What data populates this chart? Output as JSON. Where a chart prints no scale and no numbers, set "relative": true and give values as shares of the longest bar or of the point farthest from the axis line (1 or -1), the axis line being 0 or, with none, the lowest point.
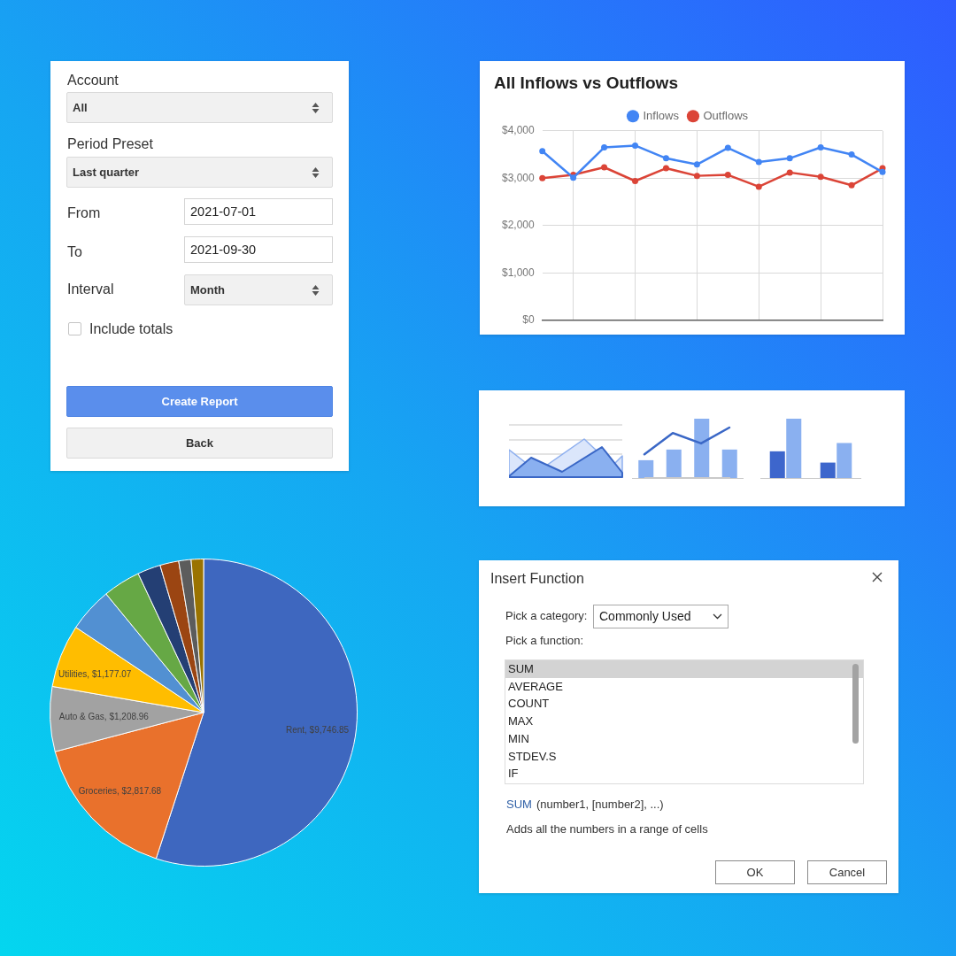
{
  "chart_data": [
    {
      "type": "other",
      "annotations": [
        "Account",
        "All",
        "Period Preset",
        "Last quarter",
        "From",
        "2021-07-01",
        "To",
        "2021-09-30",
        "Interval",
        "Month",
        "Include totals",
        "Create Report",
        "Back"
      ]
    },
    {
      "type": "line",
      "title": "All Inflows vs Outflows",
      "categories": [
        null,
        null,
        null,
        null,
        null,
        null,
        null,
        null,
        null,
        null,
        null,
        null
      ],
      "series": [
        {
          "name": "Inflows",
          "color": "#4285f4",
          "values": [
            3570,
            3010,
            3650,
            3690,
            3420,
            3290,
            3640,
            3340,
            3420,
            3650,
            3500,
            3130
          ]
        },
        {
          "name": "Outflows",
          "color": "#db4437",
          "values": [
            3000,
            3070,
            3230,
            2940,
            3210,
            3050,
            3070,
            2820,
            3120,
            3030,
            2850,
            3210
          ]
        }
      ],
      "ylim": [
        0,
        4000
      ],
      "yticks": [
        {
          "value": 0,
          "label": "$0"
        },
        {
          "value": 1000,
          "label": "$1,000"
        },
        {
          "value": 2000,
          "label": "$2,000"
        },
        {
          "value": 3000,
          "label": "$3,000"
        },
        {
          "value": 4000,
          "label": "$4,000"
        }
      ],
      "grid": true,
      "legend": "top",
      "marker": "circle"
    },
    {
      "type": "bar",
      "relative": true,
      "categories": [
        null,
        null,
        null,
        null
      ],
      "series": [
        {
          "color": "#8ab0f0",
          "values": [
            0.3,
            0.48,
            1,
            0.48
          ]
        }
      ]
    },
    {
      "type": "line",
      "relative": true,
      "categories": [
        null,
        null,
        null,
        null
      ],
      "series": [
        {
          "color": "#3a67c6",
          "values": [
            0.46,
            0.89,
            0.68,
            1
          ]
        }
      ]
    },
    {
      "type": "bar",
      "relative": true,
      "categories": [
        null,
        null
      ],
      "series": [
        {
          "color": "#3d66cc",
          "values": [
            0.45,
            0.26
          ]
        },
        {
          "color": "#8ab0f0",
          "values": [
            1,
            0.59
          ]
        }
      ]
    },
    {
      "type": "pie",
      "categories": [
        "Rent",
        "Groceries",
        "Auto & Gas",
        "Utilities",
        null,
        null,
        null,
        null,
        null,
        null
      ],
      "values": [
        9746.85,
        2817.68,
        1208.96,
        1177.07,
        830,
        700,
        430,
        350,
        230,
        230
      ],
      "colors": [
        "#3e67bf",
        "#e9712c",
        "#a2a2a2",
        "#ffbd00",
        "#5290d2",
        "#66a845",
        "#243f74",
        "#9b4512",
        "#5c5c5c",
        "#9a7300"
      ],
      "value_labels": [
        "$9,746.85",
        "$2,817.68",
        "$1,208.96",
        "$1,177.07",
        null,
        null,
        null,
        null,
        null,
        null
      ]
    },
    {
      "type": "other",
      "title": "Insert Function",
      "annotations": [
        "Pick a category:",
        "Commonly Used",
        "Pick a function:",
        "SUM",
        "AVERAGE",
        "COUNT",
        "MAX",
        "MIN",
        "STDEV.S",
        "IF",
        "SUM",
        "(number1, [number2], ...)",
        "Adds all the numbers in a range of cells",
        "OK",
        "Cancel"
      ]
    }
  ]
}
